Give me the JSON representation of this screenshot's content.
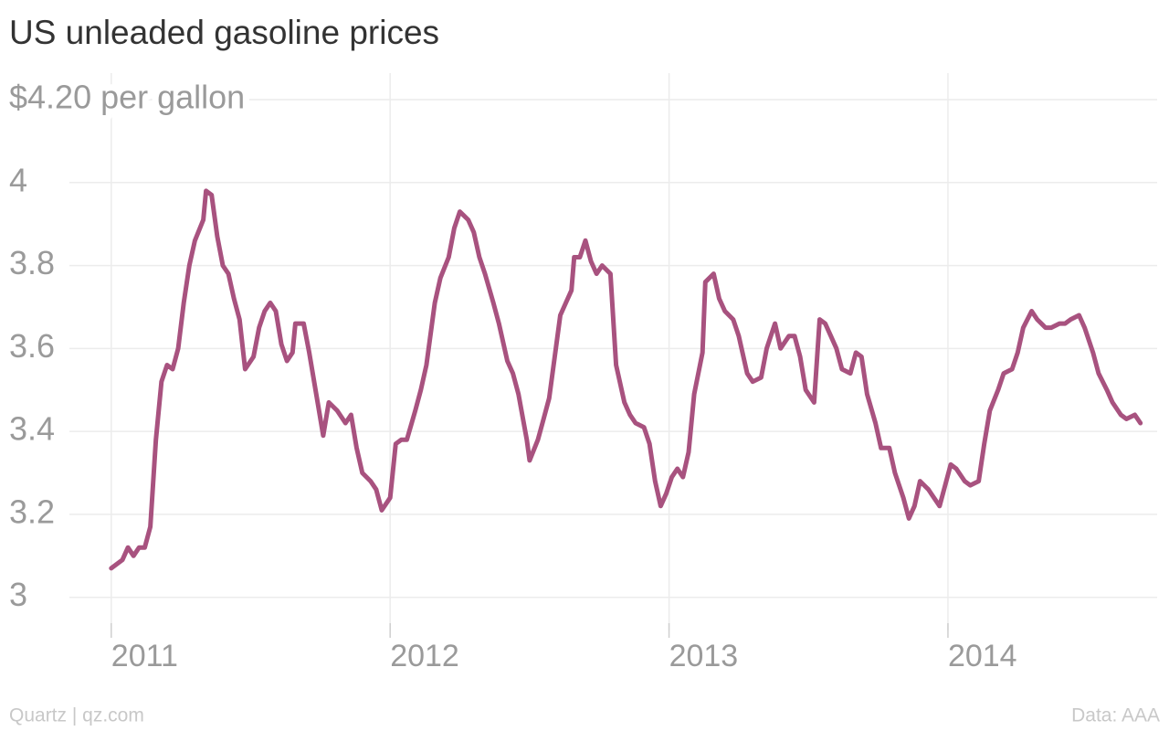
{
  "chart_data": {
    "type": "line",
    "title": "US unleaded gasoline prices",
    "source": "Quartz | qz.com",
    "credit": "Data: AAA",
    "color": "#a8527f",
    "grid": true,
    "xlim": [
      2010.85,
      2014.75
    ],
    "xticks": [
      2011,
      2012,
      2013,
      2014
    ],
    "ylim": [
      2.92,
      4.2
    ],
    "yticks": [
      3.0,
      3.2,
      3.4,
      3.6,
      3.8,
      4.0,
      {
        "value": 4.2,
        "label": "$4.20 per gallon"
      }
    ],
    "x": [
      2011.0,
      2011.04,
      2011.06,
      2011.08,
      2011.1,
      2011.12,
      2011.14,
      2011.16,
      2011.18,
      2011.2,
      2011.22,
      2011.24,
      2011.26,
      2011.28,
      2011.3,
      2011.33,
      2011.34,
      2011.36,
      2011.38,
      2011.4,
      2011.42,
      2011.44,
      2011.46,
      2011.48,
      2011.51,
      2011.53,
      2011.55,
      2011.57,
      2011.59,
      2011.61,
      2011.63,
      2011.65,
      2011.66,
      2011.69,
      2011.71,
      2011.74,
      2011.76,
      2011.78,
      2011.81,
      2011.84,
      2011.86,
      2011.88,
      2011.9,
      2011.93,
      2011.95,
      2011.97,
      2012.0,
      2012.02,
      2012.04,
      2012.06,
      2012.09,
      2012.11,
      2012.13,
      2012.16,
      2012.18,
      2012.21,
      2012.23,
      2012.25,
      2012.28,
      2012.3,
      2012.32,
      2012.34,
      2012.37,
      2012.39,
      2012.42,
      2012.44,
      2012.46,
      2012.49,
      2012.5,
      2012.53,
      2012.55,
      2012.57,
      2012.59,
      2012.61,
      2012.63,
      2012.65,
      2012.66,
      2012.68,
      2012.7,
      2012.72,
      2012.74,
      2012.76,
      2012.79,
      2012.81,
      2012.84,
      2012.86,
      2012.88,
      2012.91,
      2012.93,
      2012.95,
      2012.97,
      2012.99,
      2013.01,
      2013.03,
      2013.05,
      2013.07,
      2013.09,
      2013.12,
      2013.13,
      2013.16,
      2013.18,
      2013.2,
      2013.23,
      2013.25,
      2013.28,
      2013.3,
      2013.33,
      2013.35,
      2013.38,
      2013.4,
      2013.43,
      2013.45,
      2013.47,
      2013.49,
      2013.52,
      2013.54,
      2013.56,
      2013.58,
      2013.6,
      2013.62,
      2013.65,
      2013.67,
      2013.69,
      2013.71,
      2013.74,
      2013.76,
      2013.79,
      2013.81,
      2013.84,
      2013.86,
      2013.88,
      2013.9,
      2013.93,
      2013.94,
      2013.97,
      2013.99,
      2014.01,
      2014.03,
      2014.06,
      2014.08,
      2014.11,
      2014.13,
      2014.15,
      2014.18,
      2014.2,
      2014.23,
      2014.25,
      2014.27,
      2014.3,
      2014.32,
      2014.35,
      2014.37,
      2014.4,
      2014.42,
      2014.44,
      2014.47,
      2014.49,
      2014.52,
      2014.54,
      2014.57,
      2014.59,
      2014.62,
      2014.64,
      2014.67,
      2014.69
    ],
    "values": [
      3.07,
      3.09,
      3.12,
      3.1,
      3.12,
      3.12,
      3.17,
      3.38,
      3.52,
      3.56,
      3.55,
      3.6,
      3.71,
      3.8,
      3.86,
      3.91,
      3.98,
      3.97,
      3.87,
      3.8,
      3.78,
      3.72,
      3.67,
      3.55,
      3.58,
      3.65,
      3.69,
      3.71,
      3.69,
      3.61,
      3.57,
      3.59,
      3.66,
      3.66,
      3.59,
      3.47,
      3.39,
      3.47,
      3.45,
      3.42,
      3.44,
      3.36,
      3.3,
      3.28,
      3.26,
      3.21,
      3.24,
      3.37,
      3.38,
      3.38,
      3.45,
      3.5,
      3.56,
      3.71,
      3.77,
      3.82,
      3.89,
      3.93,
      3.91,
      3.88,
      3.82,
      3.78,
      3.71,
      3.66,
      3.57,
      3.54,
      3.49,
      3.38,
      3.33,
      3.38,
      3.43,
      3.48,
      3.58,
      3.68,
      3.71,
      3.74,
      3.82,
      3.82,
      3.86,
      3.81,
      3.78,
      3.8,
      3.78,
      3.56,
      3.47,
      3.44,
      3.42,
      3.41,
      3.37,
      3.28,
      3.22,
      3.25,
      3.29,
      3.31,
      3.29,
      3.35,
      3.49,
      3.59,
      3.76,
      3.78,
      3.72,
      3.69,
      3.67,
      3.63,
      3.54,
      3.52,
      3.53,
      3.6,
      3.66,
      3.6,
      3.63,
      3.63,
      3.58,
      3.5,
      3.47,
      3.67,
      3.66,
      3.63,
      3.6,
      3.55,
      3.54,
      3.59,
      3.58,
      3.49,
      3.42,
      3.36,
      3.36,
      3.3,
      3.24,
      3.19,
      3.22,
      3.28,
      3.26,
      3.25,
      3.22,
      3.27,
      3.32,
      3.31,
      3.28,
      3.27,
      3.28,
      3.37,
      3.45,
      3.5,
      3.54,
      3.55,
      3.59,
      3.65,
      3.69,
      3.67,
      3.65,
      3.65,
      3.66,
      3.66,
      3.67,
      3.68,
      3.65,
      3.59,
      3.54,
      3.5,
      3.47,
      3.44,
      3.43,
      3.44,
      3.42
    ]
  }
}
